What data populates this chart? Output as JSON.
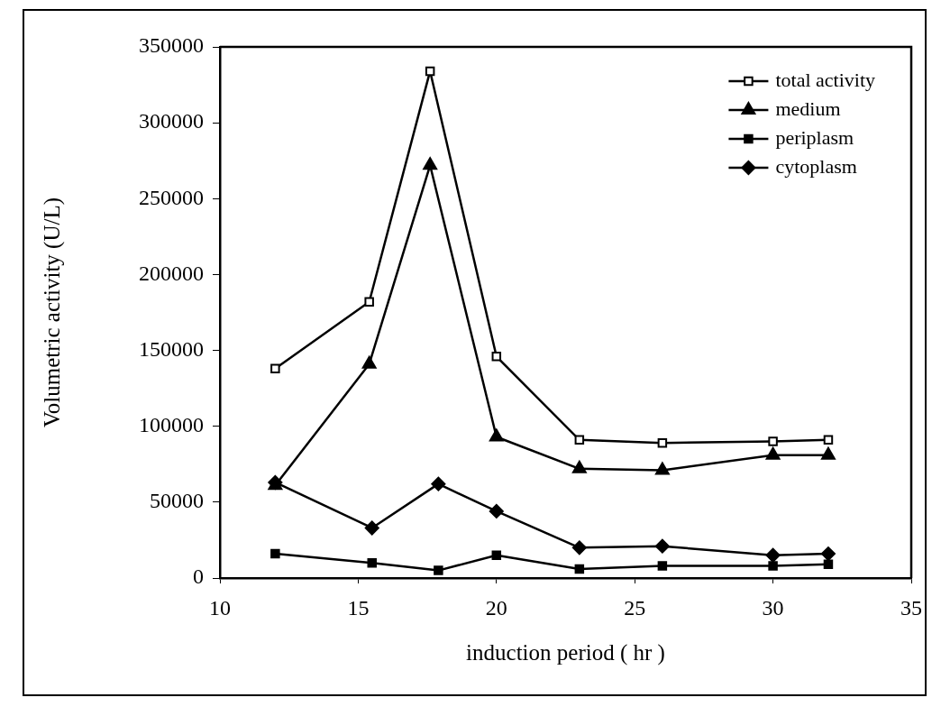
{
  "chart_data": {
    "type": "line",
    "xlabel": "induction period ( hr )",
    "ylabel": "Volumetric activity (U/L)",
    "xlim": [
      10,
      35
    ],
    "xticks": [
      10,
      15,
      20,
      25,
      30,
      35
    ],
    "ylim": [
      0,
      350000
    ],
    "yticks": [
      0,
      50000,
      100000,
      150000,
      200000,
      250000,
      300000,
      350000
    ],
    "grid": false,
    "legend": "top right",
    "line_style": "solid",
    "series": [
      {
        "name": "total activity",
        "color": "#000000",
        "marker": "square-open",
        "x": [
          12,
          15.4,
          17.6,
          20,
          23,
          26,
          30,
          32
        ],
        "values": [
          138000,
          182000,
          334000,
          146000,
          91000,
          89000,
          90000,
          91000
        ]
      },
      {
        "name": "medium",
        "color": "#000000",
        "marker": "triangle",
        "x": [
          12,
          15.4,
          17.6,
          20,
          23,
          26,
          30,
          32
        ],
        "values": [
          61000,
          141000,
          272000,
          93000,
          72000,
          71000,
          81000,
          81000
        ]
      },
      {
        "name": "periplasm",
        "color": "#000000",
        "marker": "square",
        "x": [
          12,
          15.5,
          17.9,
          20,
          23,
          26,
          30,
          32
        ],
        "values": [
          16000,
          10000,
          5000,
          15000,
          6000,
          8000,
          8000,
          9000
        ]
      },
      {
        "name": "cytoplasm",
        "color": "#000000",
        "marker": "diamond",
        "x": [
          12,
          15.5,
          17.9,
          20,
          23,
          26,
          30,
          32
        ],
        "values": [
          63000,
          33000,
          62000,
          44000,
          20000,
          21000,
          15000,
          16000
        ]
      }
    ]
  }
}
